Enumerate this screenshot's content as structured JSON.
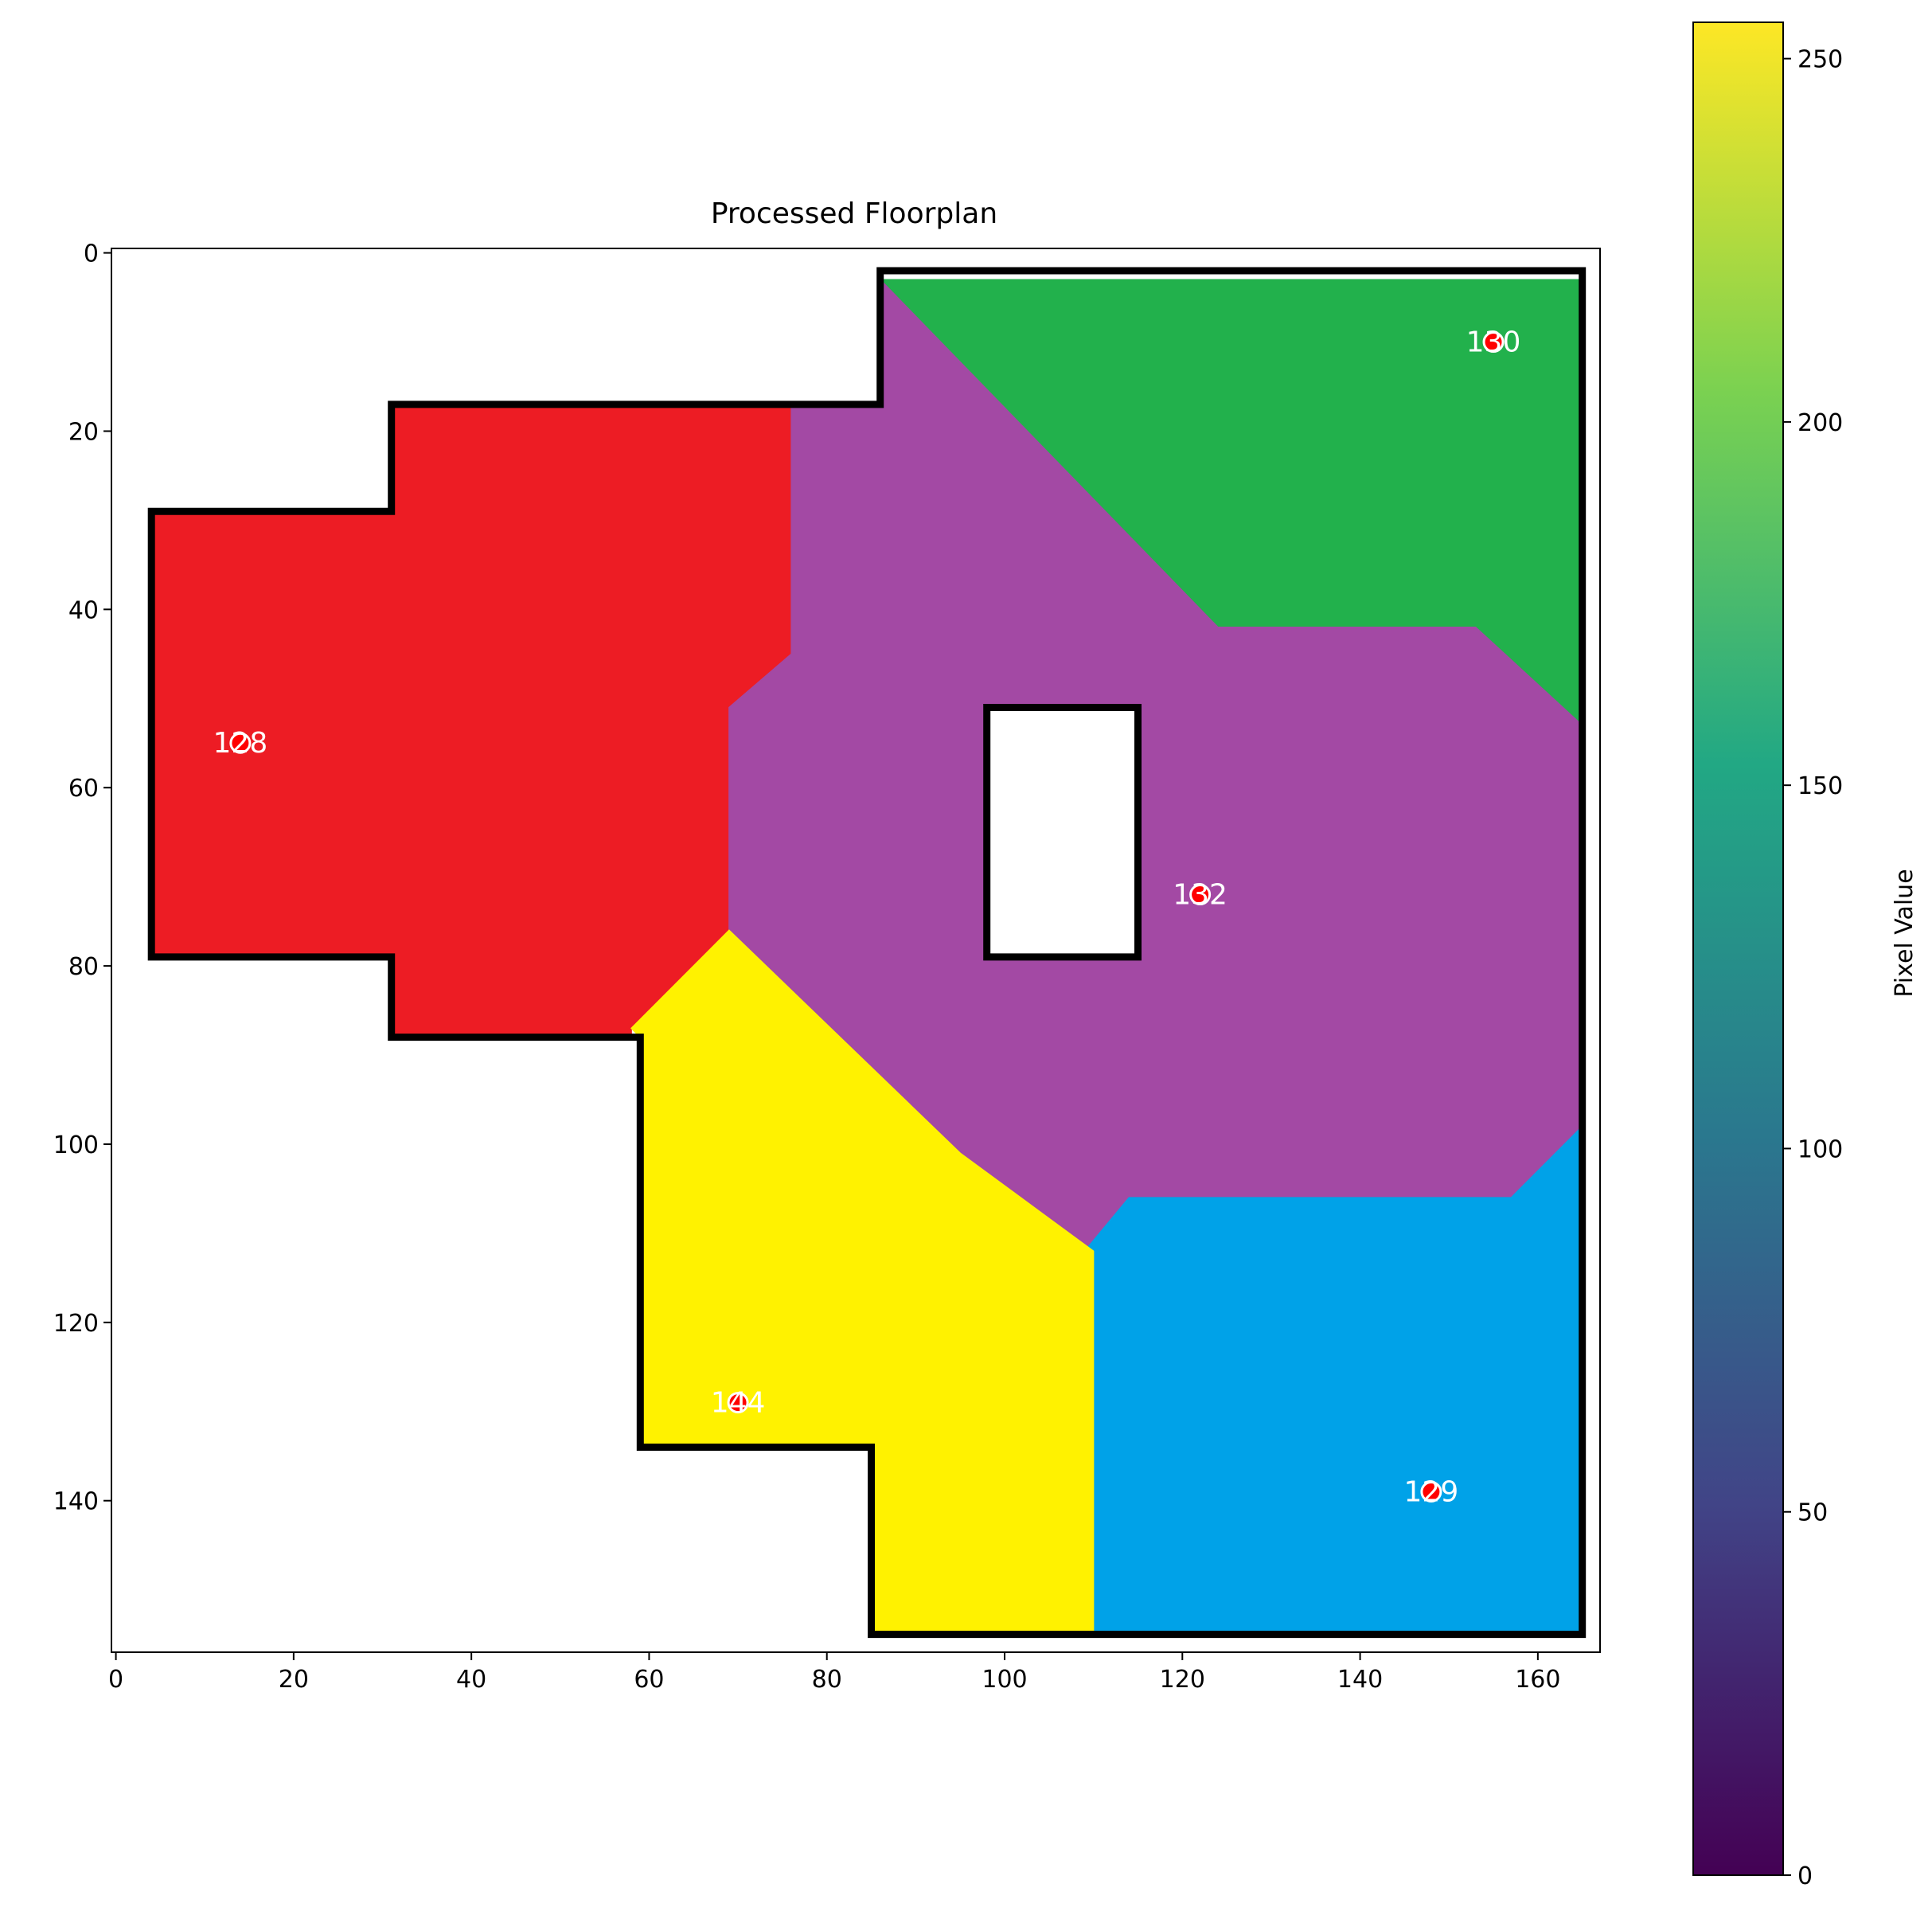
{
  "chart_data": {
    "type": "heatmap",
    "title": "Processed Floorplan",
    "xlim": [
      0,
      167
    ],
    "ylim": [
      157,
      0
    ],
    "x_ticks": [
      0,
      20,
      40,
      60,
      80,
      100,
      120,
      140,
      160
    ],
    "y_ticks": [
      0,
      20,
      40,
      60,
      80,
      100,
      120,
      140
    ],
    "grid": false,
    "colorbar": {
      "label": "Pixel Value",
      "range": [
        0,
        255
      ],
      "ticks": [
        0,
        50,
        100,
        150,
        200,
        250
      ],
      "colormap": "viridis",
      "colors": [
        "#440154",
        "#414487",
        "#2a788e",
        "#22a884",
        "#7ad151",
        "#fde725"
      ]
    },
    "rooms": [
      {
        "label": "128",
        "color": "#ed1c24",
        "center": [
          14,
          55
        ],
        "polygon": [
          [
            4,
            29
          ],
          [
            31,
            29
          ],
          [
            31,
            17
          ],
          [
            76,
            17
          ],
          [
            76,
            45
          ],
          [
            69,
            51
          ],
          [
            69,
            76
          ],
          [
            58,
            87
          ],
          [
            58,
            88
          ],
          [
            31,
            88
          ],
          [
            31,
            79
          ],
          [
            4,
            79
          ]
        ]
      },
      {
        "label": "130",
        "color": "#22b14c",
        "center": [
          155,
          10
        ],
        "polygon": [
          [
            86,
            3
          ],
          [
            165,
            3
          ],
          [
            165,
            53
          ],
          [
            153,
            42
          ],
          [
            124,
            42
          ],
          [
            86,
            3
          ]
        ]
      },
      {
        "label": "132",
        "color": "#a349a4",
        "center": [
          122,
          72
        ],
        "polygon": [
          [
            86,
            3
          ],
          [
            124,
            42
          ],
          [
            153,
            42
          ],
          [
            165,
            53
          ],
          [
            165,
            98
          ],
          [
            157,
            106
          ],
          [
            114,
            106
          ],
          [
            109,
            112
          ],
          [
            95,
            101
          ],
          [
            69,
            76
          ],
          [
            69,
            51
          ],
          [
            76,
            45
          ],
          [
            76,
            17
          ],
          [
            86,
            17
          ]
        ]
      },
      {
        "label": "129",
        "color": "#00a2e8",
        "center": [
          148,
          139
        ],
        "polygon": [
          [
            109,
            112
          ],
          [
            114,
            106
          ],
          [
            157,
            106
          ],
          [
            165,
            98
          ],
          [
            165,
            155
          ],
          [
            110,
            155
          ]
        ]
      },
      {
        "label": "144",
        "color": "#fff200",
        "center": [
          70,
          129
        ],
        "polygon": [
          [
            58,
            87
          ],
          [
            69,
            76
          ],
          [
            95,
            101
          ],
          [
            110,
            112
          ],
          [
            110,
            155
          ],
          [
            85,
            155
          ],
          [
            85,
            134
          ],
          [
            59,
            134
          ],
          [
            59,
            88
          ]
        ]
      }
    ],
    "walls": {
      "outer": [
        [
          86,
          2
        ],
        [
          165,
          2
        ],
        [
          165,
          155
        ],
        [
          85,
          155
        ],
        [
          85,
          134
        ],
        [
          59,
          134
        ],
        [
          59,
          88
        ],
        [
          31,
          88
        ],
        [
          31,
          79
        ],
        [
          4,
          79
        ],
        [
          4,
          29
        ],
        [
          31,
          29
        ],
        [
          31,
          17
        ],
        [
          86,
          17
        ]
      ],
      "inner": [
        [
          98,
          51
        ],
        [
          115,
          51
        ],
        [
          115,
          79
        ],
        [
          98,
          79
        ]
      ]
    },
    "hole_color": "#ffffff",
    "wall_color": "#000000",
    "marker_color": "#ff0000"
  }
}
